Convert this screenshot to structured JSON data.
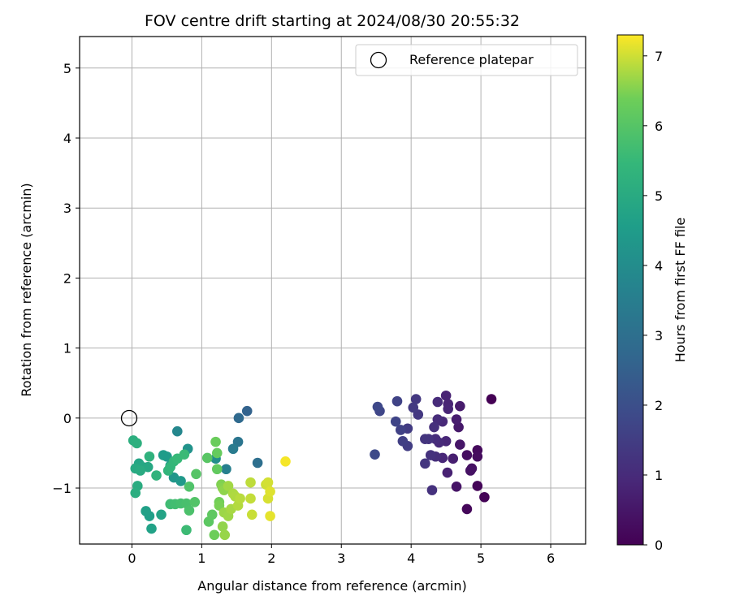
{
  "chart_data": {
    "type": "scatter",
    "title": "FOV centre drift starting at 2024/08/30 20:55:32",
    "xlabel": "Angular distance from reference (arcmin)",
    "ylabel": "Rotation from reference (arcmin)",
    "xlim": [
      -0.75,
      6.5
    ],
    "ylim": [
      -1.8,
      5.45
    ],
    "xticks": [
      0,
      1,
      2,
      3,
      4,
      5,
      6
    ],
    "xtick_labels": [
      "0",
      "1",
      "2",
      "3",
      "4",
      "5",
      "6"
    ],
    "yticks": [
      -1,
      0,
      1,
      2,
      3,
      4,
      5
    ],
    "ytick_labels": [
      "−1",
      "0",
      "1",
      "2",
      "3",
      "4",
      "5"
    ],
    "grid": true,
    "legend": {
      "position": "top-right",
      "entries": [
        "Reference platepar"
      ]
    },
    "reference_point": {
      "name": "Reference platepar",
      "x": 0,
      "y": 0
    },
    "colorbar": {
      "label": "Hours from first FF file",
      "colormap": "viridis",
      "range": [
        0,
        7.3
      ],
      "ticks": [
        0,
        1,
        2,
        3,
        4,
        5,
        6,
        7
      ],
      "tick_labels": [
        "0",
        "1",
        "2",
        "3",
        "4",
        "5",
        "6",
        "7"
      ]
    },
    "series": [
      {
        "points": [
          {
            "x": 5.15,
            "y": 0.27,
            "h": 0.0
          },
          {
            "x": 5.05,
            "y": -1.13,
            "h": 0.05
          },
          {
            "x": 4.95,
            "y": -0.97,
            "h": 0.1
          },
          {
            "x": 4.8,
            "y": -1.3,
            "h": 0.15
          },
          {
            "x": 4.95,
            "y": -0.46,
            "h": 0.2
          },
          {
            "x": 4.95,
            "y": -0.55,
            "h": 0.25
          },
          {
            "x": 4.8,
            "y": -0.53,
            "h": 0.3
          },
          {
            "x": 4.87,
            "y": -0.72,
            "h": 0.35
          },
          {
            "x": 4.85,
            "y": -0.75,
            "h": 0.4
          },
          {
            "x": 4.65,
            "y": -0.98,
            "h": 0.45
          },
          {
            "x": 4.7,
            "y": -0.38,
            "h": 0.5
          },
          {
            "x": 4.68,
            "y": -0.13,
            "h": 0.55
          },
          {
            "x": 4.7,
            "y": 0.17,
            "h": 0.6
          },
          {
            "x": 4.65,
            "y": -0.02,
            "h": 0.65
          },
          {
            "x": 4.6,
            "y": -0.58,
            "h": 0.7
          },
          {
            "x": 4.52,
            "y": -0.78,
            "h": 0.75
          },
          {
            "x": 4.5,
            "y": 0.32,
            "h": 0.8
          },
          {
            "x": 4.53,
            "y": 0.2,
            "h": 0.82
          },
          {
            "x": 4.53,
            "y": 0.13,
            "h": 0.85
          },
          {
            "x": 4.5,
            "y": -0.33,
            "h": 0.88
          },
          {
            "x": 4.45,
            "y": -0.57,
            "h": 0.9
          },
          {
            "x": 4.45,
            "y": -0.05,
            "h": 0.93
          },
          {
            "x": 4.4,
            "y": -0.35,
            "h": 0.96
          },
          {
            "x": 4.38,
            "y": 0.23,
            "h": 1.0
          },
          {
            "x": 4.38,
            "y": -0.02,
            "h": 1.03
          },
          {
            "x": 4.35,
            "y": -0.3,
            "h": 1.06
          },
          {
            "x": 4.35,
            "y": -0.55,
            "h": 1.1
          },
          {
            "x": 4.33,
            "y": -0.13,
            "h": 1.13
          },
          {
            "x": 4.3,
            "y": -1.03,
            "h": 1.16
          },
          {
            "x": 4.28,
            "y": -0.53,
            "h": 1.2
          },
          {
            "x": 4.25,
            "y": -0.3,
            "h": 1.23
          },
          {
            "x": 4.2,
            "y": -0.3,
            "h": 1.26
          },
          {
            "x": 4.2,
            "y": -0.65,
            "h": 1.3
          },
          {
            "x": 4.1,
            "y": 0.05,
            "h": 1.33
          },
          {
            "x": 4.07,
            "y": 0.27,
            "h": 1.36
          },
          {
            "x": 4.03,
            "y": 0.15,
            "h": 1.4
          },
          {
            "x": 3.95,
            "y": -0.15,
            "h": 1.45
          },
          {
            "x": 3.95,
            "y": -0.4,
            "h": 1.5
          },
          {
            "x": 3.88,
            "y": -0.33,
            "h": 1.55
          },
          {
            "x": 3.85,
            "y": -0.17,
            "h": 1.6
          },
          {
            "x": 3.8,
            "y": 0.24,
            "h": 1.65
          },
          {
            "x": 3.78,
            "y": -0.05,
            "h": 1.7
          },
          {
            "x": 3.55,
            "y": 0.1,
            "h": 1.75
          },
          {
            "x": 3.52,
            "y": 0.16,
            "h": 1.8
          },
          {
            "x": 3.48,
            "y": -0.52,
            "h": 1.85
          },
          {
            "x": 1.65,
            "y": 0.1,
            "h": 2.6
          },
          {
            "x": 1.53,
            "y": 0.0,
            "h": 2.8
          },
          {
            "x": 1.8,
            "y": -0.64,
            "h": 3.0
          },
          {
            "x": 1.52,
            "y": -0.34,
            "h": 3.2
          },
          {
            "x": 1.45,
            "y": -0.44,
            "h": 3.4
          },
          {
            "x": 1.35,
            "y": -0.73,
            "h": 3.55
          },
          {
            "x": 0.65,
            "y": -0.19,
            "h": 3.8
          },
          {
            "x": 1.2,
            "y": -0.58,
            "h": 4.0
          },
          {
            "x": 0.8,
            "y": -0.44,
            "h": 4.2
          },
          {
            "x": 0.6,
            "y": -0.85,
            "h": 4.3
          },
          {
            "x": 0.7,
            "y": -0.9,
            "h": 4.4
          },
          {
            "x": 0.5,
            "y": -0.55,
            "h": 4.45
          },
          {
            "x": 0.45,
            "y": -0.53,
            "h": 4.5
          },
          {
            "x": 0.55,
            "y": -0.68,
            "h": 4.55
          },
          {
            "x": 0.25,
            "y": -1.4,
            "h": 4.6
          },
          {
            "x": 0.2,
            "y": -1.33,
            "h": 4.65
          },
          {
            "x": 0.28,
            "y": -1.58,
            "h": 4.7
          },
          {
            "x": 0.42,
            "y": -1.38,
            "h": 4.75
          },
          {
            "x": 0.1,
            "y": -0.65,
            "h": 4.8
          },
          {
            "x": 0.15,
            "y": -0.7,
            "h": 4.85
          },
          {
            "x": 0.23,
            "y": -0.7,
            "h": 4.9
          },
          {
            "x": 0.05,
            "y": -0.72,
            "h": 4.95
          },
          {
            "x": 0.12,
            "y": -0.75,
            "h": 5.0
          },
          {
            "x": 0.08,
            "y": -0.97,
            "h": 5.05
          },
          {
            "x": 0.05,
            "y": -1.07,
            "h": 5.1
          },
          {
            "x": 0.02,
            "y": -0.32,
            "h": 5.15
          },
          {
            "x": 0.07,
            "y": -0.36,
            "h": 5.2
          },
          {
            "x": 0.25,
            "y": -0.55,
            "h": 5.25
          },
          {
            "x": 0.35,
            "y": -0.82,
            "h": 5.3
          },
          {
            "x": 0.52,
            "y": -0.75,
            "h": 5.35
          },
          {
            "x": 0.55,
            "y": -0.7,
            "h": 5.4
          },
          {
            "x": 0.6,
            "y": -0.62,
            "h": 5.45
          },
          {
            "x": 0.65,
            "y": -0.58,
            "h": 5.5
          },
          {
            "x": 0.75,
            "y": -0.52,
            "h": 5.55
          },
          {
            "x": 0.78,
            "y": -1.6,
            "h": 5.6
          },
          {
            "x": 0.55,
            "y": -1.23,
            "h": 5.65
          },
          {
            "x": 0.62,
            "y": -1.23,
            "h": 5.7
          },
          {
            "x": 0.7,
            "y": -1.22,
            "h": 5.75
          },
          {
            "x": 0.78,
            "y": -1.22,
            "h": 5.8
          },
          {
            "x": 0.82,
            "y": -1.32,
            "h": 5.85
          },
          {
            "x": 0.82,
            "y": -0.98,
            "h": 5.9
          },
          {
            "x": 0.9,
            "y": -1.2,
            "h": 5.95
          },
          {
            "x": 0.92,
            "y": -0.8,
            "h": 6.0
          },
          {
            "x": 1.08,
            "y": -0.57,
            "h": 6.05
          },
          {
            "x": 1.1,
            "y": -1.48,
            "h": 6.1
          },
          {
            "x": 1.15,
            "y": -1.38,
            "h": 6.15
          },
          {
            "x": 1.22,
            "y": -0.73,
            "h": 6.2
          },
          {
            "x": 1.22,
            "y": -0.5,
            "h": 6.25
          },
          {
            "x": 1.2,
            "y": -0.34,
            "h": 6.3
          },
          {
            "x": 1.18,
            "y": -1.67,
            "h": 6.35
          },
          {
            "x": 1.25,
            "y": -1.2,
            "h": 6.4
          },
          {
            "x": 1.25,
            "y": -1.25,
            "h": 6.45
          },
          {
            "x": 1.28,
            "y": -0.95,
            "h": 6.5
          },
          {
            "x": 1.3,
            "y": -1.0,
            "h": 6.55
          },
          {
            "x": 1.32,
            "y": -1.03,
            "h": 6.6
          },
          {
            "x": 1.3,
            "y": -1.55,
            "h": 6.62
          },
          {
            "x": 1.33,
            "y": -1.67,
            "h": 6.65
          },
          {
            "x": 1.32,
            "y": -1.35,
            "h": 6.68
          },
          {
            "x": 1.38,
            "y": -1.4,
            "h": 6.7
          },
          {
            "x": 1.38,
            "y": -0.97,
            "h": 6.72
          },
          {
            "x": 1.42,
            "y": -1.3,
            "h": 6.75
          },
          {
            "x": 1.45,
            "y": -1.08,
            "h": 6.78
          },
          {
            "x": 1.48,
            "y": -1.12,
            "h": 6.8
          },
          {
            "x": 1.52,
            "y": -1.25,
            "h": 6.83
          },
          {
            "x": 1.55,
            "y": -1.15,
            "h": 6.86
          },
          {
            "x": 1.7,
            "y": -0.92,
            "h": 6.9
          },
          {
            "x": 1.7,
            "y": -1.15,
            "h": 6.93
          },
          {
            "x": 1.72,
            "y": -1.38,
            "h": 6.96
          },
          {
            "x": 1.92,
            "y": -0.95,
            "h": 7.0
          },
          {
            "x": 1.95,
            "y": -0.92,
            "h": 7.03
          },
          {
            "x": 1.95,
            "y": -1.15,
            "h": 7.06
          },
          {
            "x": 1.98,
            "y": -1.05,
            "h": 7.1
          },
          {
            "x": 1.98,
            "y": -1.4,
            "h": 7.15
          },
          {
            "x": 2.2,
            "y": -0.62,
            "h": 7.25
          }
        ]
      }
    ]
  }
}
